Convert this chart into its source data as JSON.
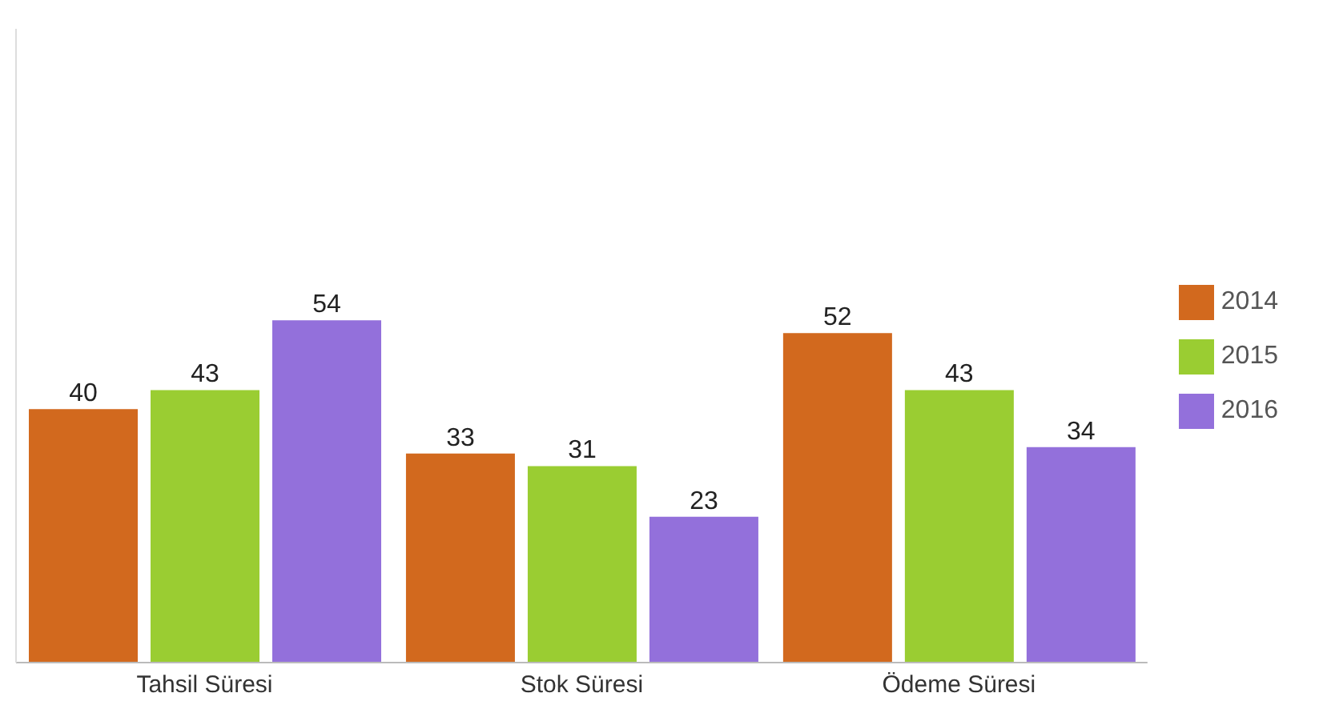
{
  "chart_data": {
    "type": "bar",
    "categories": [
      "Tahsil Süresi",
      "Stok Süresi",
      "Ödeme Süresi"
    ],
    "series": [
      {
        "name": "2014",
        "color": "#d2691e",
        "values": [
          40,
          33,
          52
        ]
      },
      {
        "name": "2015",
        "color": "#9acd32",
        "values": [
          43,
          31,
          43
        ]
      },
      {
        "name": "2016",
        "color": "#9370db",
        "values": [
          54,
          23,
          34
        ]
      }
    ],
    "ylim": [
      0,
      100
    ],
    "data_labels": true,
    "legend": "right",
    "grid": false,
    "tick_labels": "x"
  }
}
